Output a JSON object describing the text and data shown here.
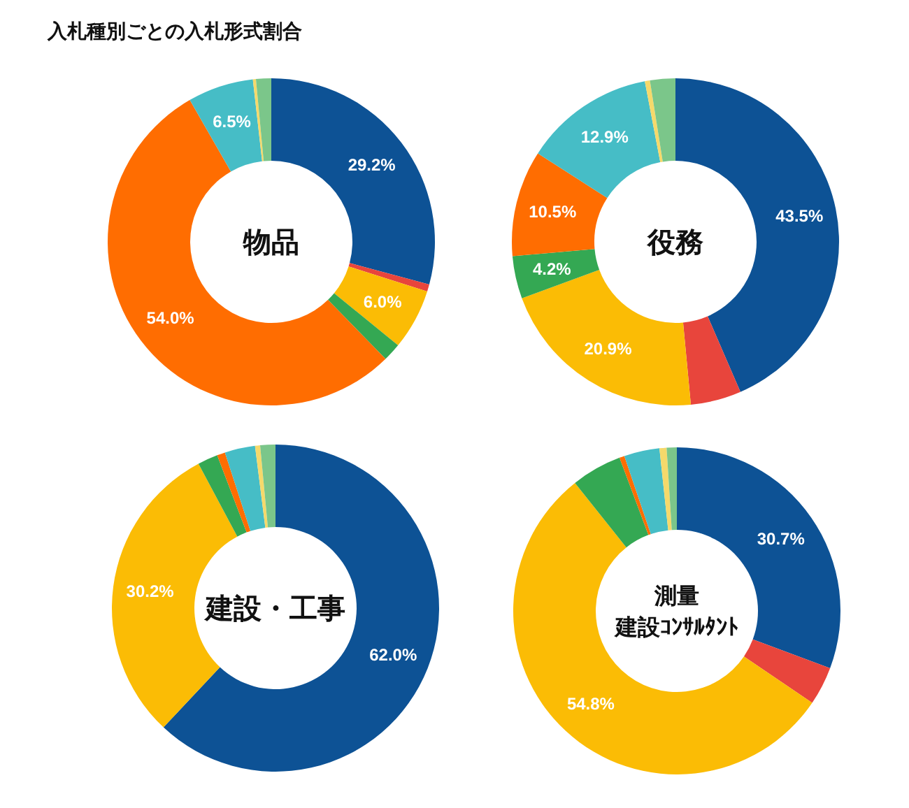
{
  "chart_data": [
    {
      "type": "donut",
      "title": "物品",
      "annotations": [
        "入札種別ごとの入札形式割合"
      ],
      "categories": [
        null,
        null,
        null,
        null,
        null,
        null,
        null,
        null
      ],
      "values": [
        29.2,
        0.7,
        6.0,
        1.8,
        54.0,
        6.5,
        0.3,
        1.5
      ],
      "colors": [
        "#0d5295",
        "#e8453c",
        "#fbbc05",
        "#34a853",
        "#ff6d01",
        "#46bdc6",
        "#f5d96b",
        "#7bc68a"
      ],
      "value_labels": [
        "29.2%",
        null,
        "6.0%",
        null,
        "54.0%",
        "6.5%",
        null,
        null
      ]
    },
    {
      "type": "donut",
      "title": "役務",
      "categories": [
        null,
        null,
        null,
        null,
        null,
        null,
        null,
        null
      ],
      "values": [
        43.5,
        5.0,
        20.9,
        4.2,
        10.5,
        12.9,
        0.5,
        2.5
      ],
      "colors": [
        "#0d5295",
        "#e8453c",
        "#fbbc05",
        "#34a853",
        "#ff6d01",
        "#46bdc6",
        "#f5d96b",
        "#7bc68a"
      ],
      "value_labels": [
        "43.5%",
        null,
        "20.9%",
        "4.2%",
        "10.5%",
        "12.9%",
        null,
        null
      ]
    },
    {
      "type": "donut",
      "title": "建設・工事",
      "categories": [
        null,
        null,
        null,
        null,
        null,
        null,
        null
      ],
      "values": [
        62.0,
        30.2,
        2.0,
        0.8,
        3.0,
        0.5,
        1.5
      ],
      "colors": [
        "#0d5295",
        "#fbbc05",
        "#34a853",
        "#ff6d01",
        "#46bdc6",
        "#f5d96b",
        "#7bc68a"
      ],
      "value_labels": [
        "62.0%",
        "30.2%",
        null,
        null,
        null,
        null,
        null
      ]
    },
    {
      "type": "donut",
      "title": "測量",
      "subtitle": "建設ｺﾝｻﾙﾀﾝﾄ",
      "categories": [
        null,
        null,
        null,
        null,
        null,
        null,
        null,
        null
      ],
      "values": [
        30.7,
        3.8,
        54.8,
        5.0,
        0.5,
        3.5,
        0.7,
        1.0
      ],
      "colors": [
        "#0d5295",
        "#e8453c",
        "#fbbc05",
        "#34a853",
        "#ff6d01",
        "#46bdc6",
        "#f5d96b",
        "#7bc68a"
      ],
      "value_labels": [
        "30.7%",
        null,
        "54.8%",
        null,
        null,
        null,
        null,
        null
      ]
    }
  ]
}
